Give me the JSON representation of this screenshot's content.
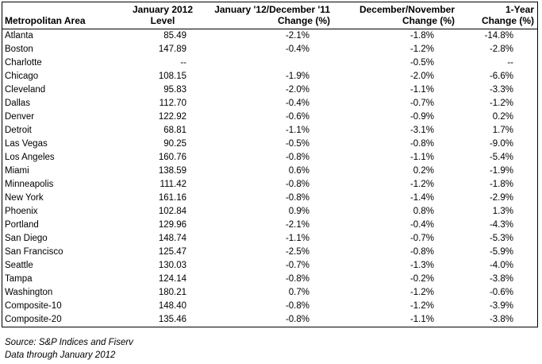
{
  "table": {
    "headers": {
      "area": "Metropolitan Area",
      "level_line1": "January 2012",
      "level_line2": "Level",
      "mom_line1": "January '12/December '11",
      "mom_line2": "Change (%)",
      "prev_line1": "December/November",
      "prev_line2": "Change (%)",
      "yoy_line1": "",
      "yoy_line2": "1-Year Change (%)"
    },
    "rows": [
      {
        "area": "Atlanta",
        "level": "85.49",
        "mom": "-2.1%",
        "prev": "-1.8%",
        "yoy": "-14.8%"
      },
      {
        "area": "Boston",
        "level": "147.89",
        "mom": "-0.4%",
        "prev": "-1.2%",
        "yoy": "-2.8%"
      },
      {
        "area": "Charlotte",
        "level": "--",
        "mom": "",
        "prev": "-0.5%",
        "yoy": "--"
      },
      {
        "area": "Chicago",
        "level": "108.15",
        "mom": "-1.9%",
        "prev": "-2.0%",
        "yoy": "-6.6%"
      },
      {
        "area": "Cleveland",
        "level": "95.83",
        "mom": "-2.0%",
        "prev": "-1.1%",
        "yoy": "-3.3%"
      },
      {
        "area": "Dallas",
        "level": "112.70",
        "mom": "-0.4%",
        "prev": "-0.7%",
        "yoy": "-1.2%"
      },
      {
        "area": "Denver",
        "level": "122.92",
        "mom": "-0.6%",
        "prev": "-0.9%",
        "yoy": "0.2%"
      },
      {
        "area": "Detroit",
        "level": "68.81",
        "mom": "-1.1%",
        "prev": "-3.1%",
        "yoy": "1.7%"
      },
      {
        "area": "Las Vegas",
        "level": "90.25",
        "mom": "-0.5%",
        "prev": "-0.8%",
        "yoy": "-9.0%"
      },
      {
        "area": "Los Angeles",
        "level": "160.76",
        "mom": "-0.8%",
        "prev": "-1.1%",
        "yoy": "-5.4%"
      },
      {
        "area": "Miami",
        "level": "138.59",
        "mom": "0.6%",
        "prev": "0.2%",
        "yoy": "-1.9%"
      },
      {
        "area": "Minneapolis",
        "level": "111.42",
        "mom": "-0.8%",
        "prev": "-1.2%",
        "yoy": "-1.8%"
      },
      {
        "area": "New York",
        "level": "161.16",
        "mom": "-0.8%",
        "prev": "-1.4%",
        "yoy": "-2.9%"
      },
      {
        "area": "Phoenix",
        "level": "102.84",
        "mom": "0.9%",
        "prev": "0.8%",
        "yoy": "1.3%"
      },
      {
        "area": "Portland",
        "level": "129.96",
        "mom": "-2.1%",
        "prev": "-0.4%",
        "yoy": "-4.3%"
      },
      {
        "area": "San Diego",
        "level": "148.74",
        "mom": "-1.1%",
        "prev": "-0.7%",
        "yoy": "-5.3%"
      },
      {
        "area": "San Francisco",
        "level": "125.47",
        "mom": "-2.5%",
        "prev": "-0.8%",
        "yoy": "-5.9%"
      },
      {
        "area": "Seattle",
        "level": "130.03",
        "mom": "-0.7%",
        "prev": "-1.3%",
        "yoy": "-4.0%"
      },
      {
        "area": "Tampa",
        "level": "124.14",
        "mom": "-0.8%",
        "prev": "-0.2%",
        "yoy": "-3.8%"
      },
      {
        "area": "Washington",
        "level": "180.21",
        "mom": "0.7%",
        "prev": "-1.2%",
        "yoy": "-0.6%"
      },
      {
        "area": "Composite-10",
        "level": "148.40",
        "mom": "-0.8%",
        "prev": "-1.2%",
        "yoy": "-3.9%"
      },
      {
        "area": "Composite-20",
        "level": "135.46",
        "mom": "-0.8%",
        "prev": "-1.1%",
        "yoy": "-3.8%"
      }
    ]
  },
  "footnotes": {
    "source": "Source: S&P Indices and Fiserv",
    "data_through": "Data through January 2012"
  }
}
